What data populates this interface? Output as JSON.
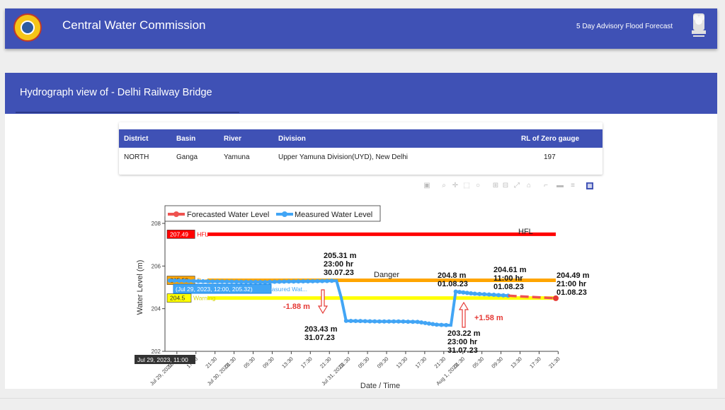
{
  "header": {
    "title": "Central Water Commission",
    "forecast_link": "5 Day Advisory Flood Forecast"
  },
  "subheader": {
    "title": "Hydrograph view of - Delhi Railway Bridge"
  },
  "info_table": {
    "headers": {
      "district": "District",
      "basin": "Basin",
      "river": "River",
      "division": "Division",
      "rl": "RL of Zero gauge"
    },
    "row": {
      "district": "NORTH",
      "basin": "Ganga",
      "river": "Yamuna",
      "division": "Upper Yamuna Division(UYD), New Delhi",
      "rl": "197"
    }
  },
  "colors": {
    "primary": "#3f51b5",
    "hfl": "#ff0000",
    "danger": "#ffa500",
    "warning": "#ffff00",
    "measured": "#42a5f5",
    "forecast": "#ef5350"
  },
  "toolbar_icons": [
    "camera-icon",
    "zoom-icon",
    "pan-icon",
    "box-select-icon",
    "lasso-icon",
    "zoom-in-icon",
    "zoom-out-icon",
    "autoscale-icon",
    "reset-icon",
    "spike-icon",
    "hover-closest-icon",
    "hover-compare-icon",
    "plotly-logo-icon"
  ],
  "chart_data": {
    "type": "line",
    "xlabel": "Date / Time",
    "ylabel": "Water Level (m)",
    "ylim": [
      202,
      208
    ],
    "yticks": [
      "202",
      "204",
      "206",
      "208"
    ],
    "legend": {
      "placement": "top-left",
      "forecast": "Forecasted Water Level",
      "measured": "Measured Water Level"
    },
    "xticks": [
      "13:30\nJul 29, 2023",
      "17:30",
      "21:30",
      "01:30\nJul 30, 2023",
      "05:30",
      "09:30",
      "13:30",
      "17:30",
      "21:30",
      "01:30\nJul 31, 2023",
      "05:30",
      "09:30",
      "13:30",
      "17:30",
      "21:30",
      "01:30\nAug 1, 2023",
      "05:30",
      "09:30",
      "13:30",
      "17:30",
      "21:30"
    ],
    "levels": [
      {
        "name": "HFL",
        "value": 207.49,
        "tag": "207.49",
        "label": "HFL"
      },
      {
        "name": "Danger",
        "value": 205.33,
        "tag": "205.33",
        "label": "Danger"
      },
      {
        "name": "Warning",
        "value": 204.5,
        "tag": "204.5",
        "label": "Warning"
      }
    ],
    "hover": {
      "x_label": "Jul 29, 2023, 11:00",
      "point_label": "(Jul 29, 2023, 12:00, 205.32)",
      "series_label": "Measured Wat..."
    },
    "measured": {
      "x": [
        "2023-07-29 12:00",
        "2023-07-29 16:00",
        "2023-07-29 20:00",
        "2023-07-30 00:00",
        "2023-07-30 04:00",
        "2023-07-30 08:00",
        "2023-07-30 12:00",
        "2023-07-30 16:00",
        "2023-07-30 19:00",
        "2023-07-30 21:00",
        "2023-07-30 23:00",
        "2023-07-31 00:00",
        "2023-07-31 01:00",
        "2023-07-31 04:00",
        "2023-07-31 08:00",
        "2023-07-31 12:00",
        "2023-07-31 16:00",
        "2023-07-31 20:00",
        "2023-07-31 23:00",
        "2023-08-01 00:00",
        "2023-08-01 04:00",
        "2023-08-01 08:00",
        "2023-08-01 11:00"
      ],
      "y": [
        205.32,
        205.3,
        205.28,
        205.27,
        205.26,
        205.25,
        205.27,
        205.28,
        205.29,
        205.3,
        205.31,
        204.5,
        203.43,
        203.42,
        203.4,
        203.4,
        203.38,
        203.25,
        203.22,
        204.8,
        204.7,
        204.65,
        204.61
      ]
    },
    "forecast": {
      "x": [
        "2023-08-01 11:00",
        "2023-08-01 16:00",
        "2023-08-01 21:00"
      ],
      "y": [
        204.61,
        204.55,
        204.49
      ]
    },
    "annotations": [
      {
        "text": [
          "205.31 m",
          "23:00 hr",
          "30.07.23"
        ]
      },
      {
        "text": [
          "203.43 m",
          "31.07.23"
        ]
      },
      {
        "text": [
          "204.8 m",
          "01.08.23"
        ]
      },
      {
        "text": [
          "203.22 m",
          "23:00 hr",
          "31.07.23"
        ]
      },
      {
        "text": [
          "204.61 m",
          "11:00 hr",
          "01.08.23"
        ]
      },
      {
        "text": [
          "204.49 m",
          "21:00 hr",
          "01.08.23"
        ]
      },
      {
        "text": [
          "-1.88 m"
        ]
      },
      {
        "text": [
          "+1.58 m"
        ]
      },
      {
        "text": [
          "Danger"
        ]
      },
      {
        "text": [
          "HFL"
        ]
      }
    ]
  }
}
